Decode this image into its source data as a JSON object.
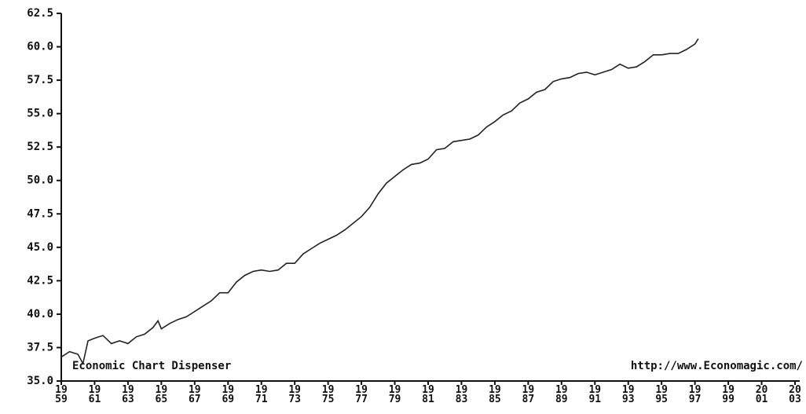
{
  "chart_data": {
    "type": "line",
    "annotations": [
      "Economic Chart Dispenser",
      "http://www.Economagic.com/"
    ],
    "x": [
      1959,
      1959.5,
      1960,
      1960.3,
      1960.6,
      1961,
      1961.5,
      1962,
      1962.5,
      1963,
      1963.5,
      1964,
      1964.5,
      1964.8,
      1965,
      1965.5,
      1966,
      1966.5,
      1967,
      1967.5,
      1968,
      1968.5,
      1969,
      1969.5,
      1970,
      1970.5,
      1971,
      1971.5,
      1972,
      1972.5,
      1973,
      1973.5,
      1974,
      1974.5,
      1975,
      1975.5,
      1976,
      1976.5,
      1977,
      1977.5,
      1978,
      1978.5,
      1979,
      1979.5,
      1980,
      1980.5,
      1981,
      1981.5,
      1982,
      1982.5,
      1983,
      1983.5,
      1984,
      1984.5,
      1985,
      1985.5,
      1986,
      1986.5,
      1987,
      1987.5,
      1988,
      1988.5,
      1989,
      1989.5,
      1990,
      1990.5,
      1991,
      1991.5,
      1992,
      1992.5,
      1993,
      1993.5,
      1994,
      1994.5,
      1995,
      1995.5,
      1996,
      1996.5,
      1997,
      1997.2
    ],
    "series": [
      {
        "color": "#222222",
        "values": [
          36.8,
          37.2,
          37.0,
          36.3,
          38.0,
          38.2,
          38.4,
          37.8,
          38.0,
          37.8,
          38.3,
          38.5,
          39.0,
          39.5,
          38.9,
          39.3,
          39.6,
          39.8,
          40.2,
          40.6,
          41.0,
          41.6,
          41.6,
          42.4,
          42.9,
          43.2,
          43.3,
          43.2,
          43.3,
          43.8,
          43.8,
          44.5,
          44.9,
          45.3,
          45.6,
          45.9,
          46.3,
          46.8,
          47.3,
          48.0,
          49.0,
          49.8,
          50.3,
          50.8,
          51.2,
          51.3,
          51.6,
          52.3,
          52.4,
          52.9,
          53.0,
          53.1,
          53.4,
          54.0,
          54.4,
          54.9,
          55.2,
          55.8,
          56.1,
          56.6,
          56.8,
          57.4,
          57.6,
          57.7,
          58.0,
          58.1,
          57.9,
          58.1,
          58.3,
          58.7,
          58.4,
          58.5,
          58.9,
          59.4,
          59.4,
          59.5,
          59.5,
          59.8,
          60.2,
          60.6
        ]
      }
    ],
    "xlim": [
      1959,
      2003
    ],
    "xticks": [
      {
        "value": 1959,
        "label": "19\n59"
      },
      {
        "value": 1961,
        "label": "19\n61"
      },
      {
        "value": 1963,
        "label": "19\n63"
      },
      {
        "value": 1965,
        "label": "19\n65"
      },
      {
        "value": 1967,
        "label": "19\n67"
      },
      {
        "value": 1969,
        "label": "19\n69"
      },
      {
        "value": 1971,
        "label": "19\n71"
      },
      {
        "value": 1973,
        "label": "19\n73"
      },
      {
        "value": 1975,
        "label": "19\n75"
      },
      {
        "value": 1977,
        "label": "19\n77"
      },
      {
        "value": 1979,
        "label": "19\n79"
      },
      {
        "value": 1981,
        "label": "19\n81"
      },
      {
        "value": 1983,
        "label": "19\n83"
      },
      {
        "value": 1985,
        "label": "19\n85"
      },
      {
        "value": 1987,
        "label": "19\n87"
      },
      {
        "value": 1989,
        "label": "19\n89"
      },
      {
        "value": 1991,
        "label": "19\n91"
      },
      {
        "value": 1993,
        "label": "19\n93"
      },
      {
        "value": 1995,
        "label": "19\n95"
      },
      {
        "value": 1997,
        "label": "19\n97"
      },
      {
        "value": 1999,
        "label": "19\n99"
      },
      {
        "value": 2001,
        "label": "20\n01"
      },
      {
        "value": 2003,
        "label": "20\n03"
      }
    ],
    "ylim": [
      35,
      62.5
    ],
    "yticks": [
      {
        "value": 35,
        "label": "35.0"
      },
      37.5,
      {
        "value": 40,
        "label": "40.0"
      },
      42.5,
      {
        "value": 45,
        "label": "45.0"
      },
      47.5,
      {
        "value": 50,
        "label": "50.0"
      },
      52.5,
      {
        "value": 55,
        "label": "55.0"
      },
      57.5,
      {
        "value": 60,
        "label": "60.0"
      },
      62.5
    ]
  }
}
